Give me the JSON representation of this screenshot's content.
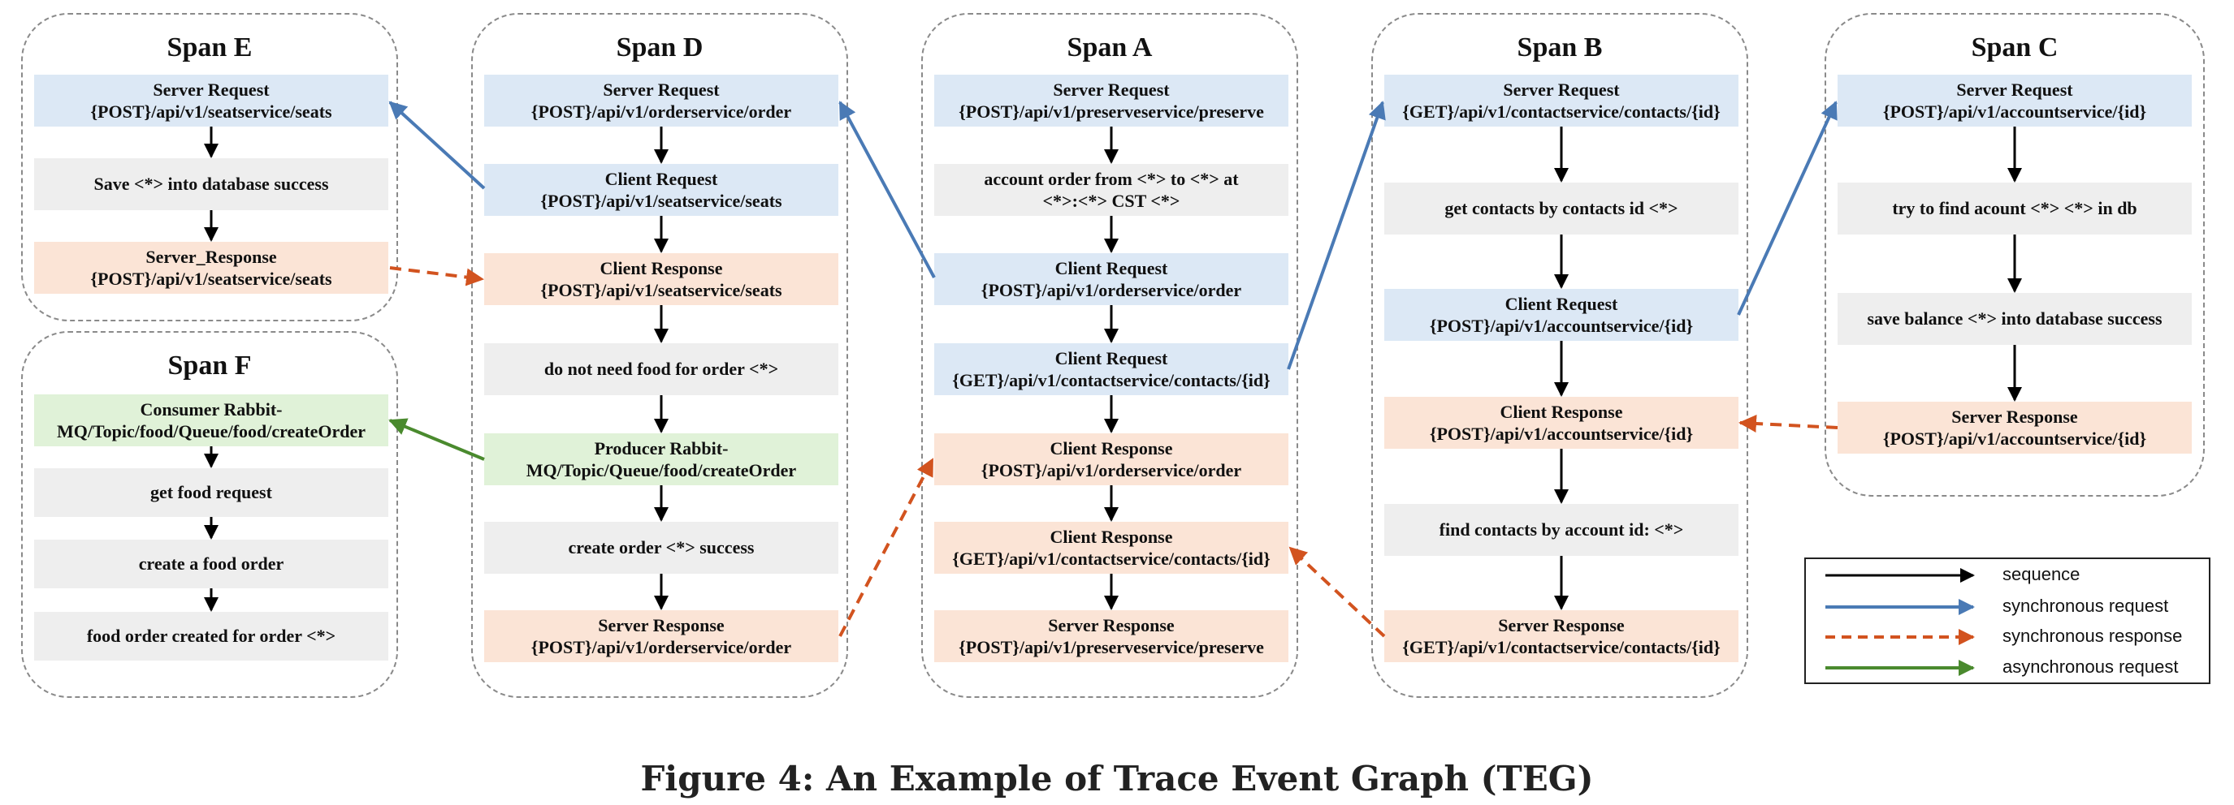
{
  "spans": {
    "E": {
      "title": "Span E",
      "nodes": [
        {
          "kind": "server",
          "l1": "Server Request",
          "l2": "{POST}/api/v1/seatservice/seats"
        },
        {
          "kind": "log",
          "l1": "Save <*> into database success",
          "l2": ""
        },
        {
          "kind": "response",
          "l1": "Server_Response",
          "l2": "{POST}/api/v1/seatservice/seats"
        }
      ]
    },
    "F": {
      "title": "Span F",
      "nodes": [
        {
          "kind": "mq",
          "l1": "Consumer Rabbit-",
          "l2": "MQ/Topic/food/Queue/food/createOrder"
        },
        {
          "kind": "log",
          "l1": "get food request",
          "l2": ""
        },
        {
          "kind": "log",
          "l1": "create a food order",
          "l2": ""
        },
        {
          "kind": "log",
          "l1": "food order created for order <*>",
          "l2": ""
        }
      ]
    },
    "D": {
      "title": "Span D",
      "nodes": [
        {
          "kind": "server",
          "l1": "Server Request",
          "l2": "{POST}/api/v1/orderservice/order"
        },
        {
          "kind": "client",
          "l1": "Client Request",
          "l2": "{POST}/api/v1/seatservice/seats"
        },
        {
          "kind": "response",
          "l1": "Client Response",
          "l2": "{POST}/api/v1/seatservice/seats"
        },
        {
          "kind": "log",
          "l1": "do not need food for order <*>",
          "l2": ""
        },
        {
          "kind": "mq",
          "l1": "Producer Rabbit-",
          "l2": "MQ/Topic/Queue/food/createOrder"
        },
        {
          "kind": "log",
          "l1": "create order <*> success",
          "l2": ""
        },
        {
          "kind": "response",
          "l1": "Server Response",
          "l2": "{POST}/api/v1/orderservice/order"
        }
      ]
    },
    "A": {
      "title": "Span A",
      "nodes": [
        {
          "kind": "server",
          "l1": "Server Request",
          "l2": "{POST}/api/v1/preserveservice/preserve"
        },
        {
          "kind": "log",
          "l1": "account order from <*> to <*> at",
          "l2": "<*>:<*> CST <*>"
        },
        {
          "kind": "client",
          "l1": "Client Request",
          "l2": "{POST}/api/v1/orderservice/order"
        },
        {
          "kind": "client",
          "l1": "Client Request",
          "l2": "{GET}/api/v1/contactservice/contacts/{id}"
        },
        {
          "kind": "response",
          "l1": "Client Response",
          "l2": "{POST}/api/v1/orderservice/order"
        },
        {
          "kind": "response",
          "l1": "Client Response",
          "l2": "{GET}/api/v1/contactservice/contacts/{id}"
        },
        {
          "kind": "response",
          "l1": "Server Response",
          "l2": "{POST}/api/v1/preserveservice/preserve"
        }
      ]
    },
    "B": {
      "title": "Span B",
      "nodes": [
        {
          "kind": "server",
          "l1": "Server Request",
          "l2": "{GET}/api/v1/contactservice/contacts/{id}"
        },
        {
          "kind": "log",
          "l1": "get contacts by contacts id <*>",
          "l2": ""
        },
        {
          "kind": "client",
          "l1": "Client Request",
          "l2": "{POST}/api/v1/accountservice/{id}"
        },
        {
          "kind": "response",
          "l1": "Client Response",
          "l2": "{POST}/api/v1/accountservice/{id}"
        },
        {
          "kind": "log",
          "l1": "find contacts by account id: <*>",
          "l2": ""
        },
        {
          "kind": "response",
          "l1": "Server Response",
          "l2": "{GET}/api/v1/contactservice/contacts/{id}"
        }
      ]
    },
    "C": {
      "title": "Span C",
      "nodes": [
        {
          "kind": "server",
          "l1": "Server Request",
          "l2": "{POST}/api/v1/accountservice/{id}"
        },
        {
          "kind": "log",
          "l1": "try to find acount <*> <*> in db",
          "l2": ""
        },
        {
          "kind": "log",
          "l1": "save balance <*> into database success",
          "l2": ""
        },
        {
          "kind": "response",
          "l1": "Server Response",
          "l2": "{POST}/api/v1/accountservice/{id}"
        }
      ]
    }
  },
  "legend": {
    "sequence": "sequence",
    "sync_request": "synchronous request",
    "sync_response": "synchronous response",
    "async_request": "asynchronous request"
  },
  "colors": {
    "sequence": "#000000",
    "sync_request": "#4a7ab5",
    "sync_response": "#d2531f",
    "async_request": "#4a8a2e",
    "server_fill": "#dce8f5",
    "response_fill": "#fbe4d6",
    "log_fill": "#eeeeee",
    "mq_fill": "#e0f2d8"
  },
  "caption": "Figure 4: An Example of Trace Event Graph (TEG)"
}
